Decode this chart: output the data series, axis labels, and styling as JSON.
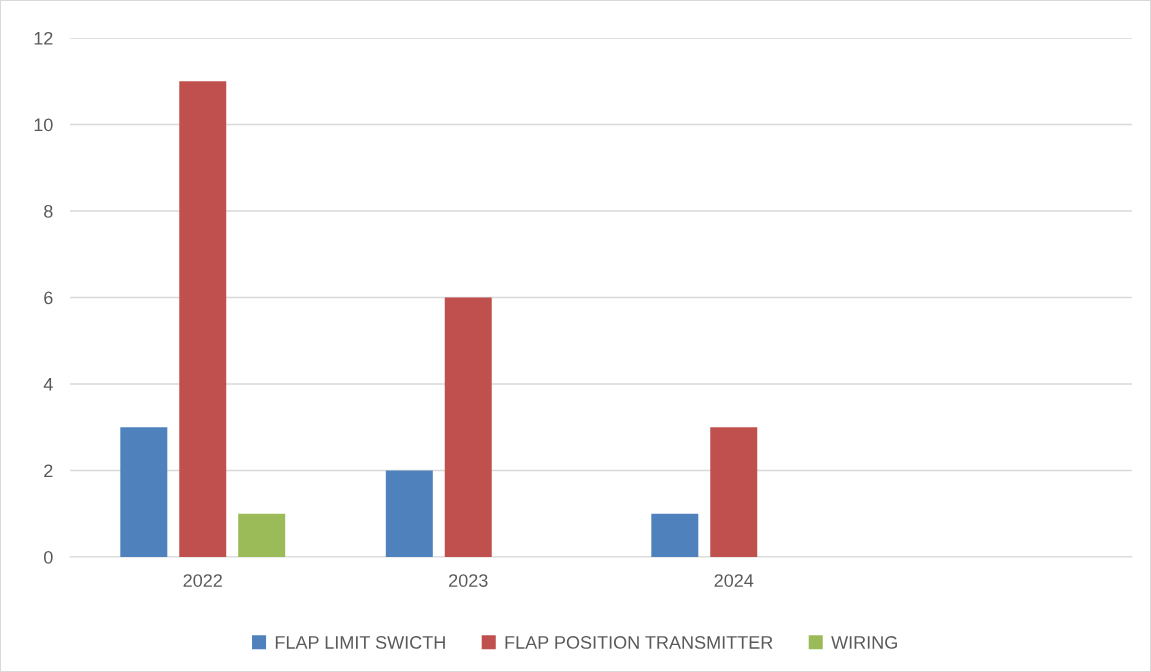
{
  "chart_data": {
    "type": "bar",
    "categories": [
      "2022",
      "2023",
      "2024",
      null
    ],
    "series": [
      {
        "name": "FLAP LIMIT SWICTH",
        "color": "#4f81bd",
        "values": [
          3,
          2,
          1,
          null
        ]
      },
      {
        "name": "FLAP POSITION TRANSMITTER",
        "color": "#c0504d",
        "values": [
          11,
          6,
          3,
          null
        ]
      },
      {
        "name": "WIRING",
        "color": "#9bbb59",
        "values": [
          1,
          null,
          null,
          null
        ]
      }
    ],
    "ylim": [
      0,
      12
    ],
    "yticks": [
      0,
      2,
      4,
      6,
      8,
      10,
      12
    ],
    "grid": "y",
    "legend": "bottom"
  }
}
